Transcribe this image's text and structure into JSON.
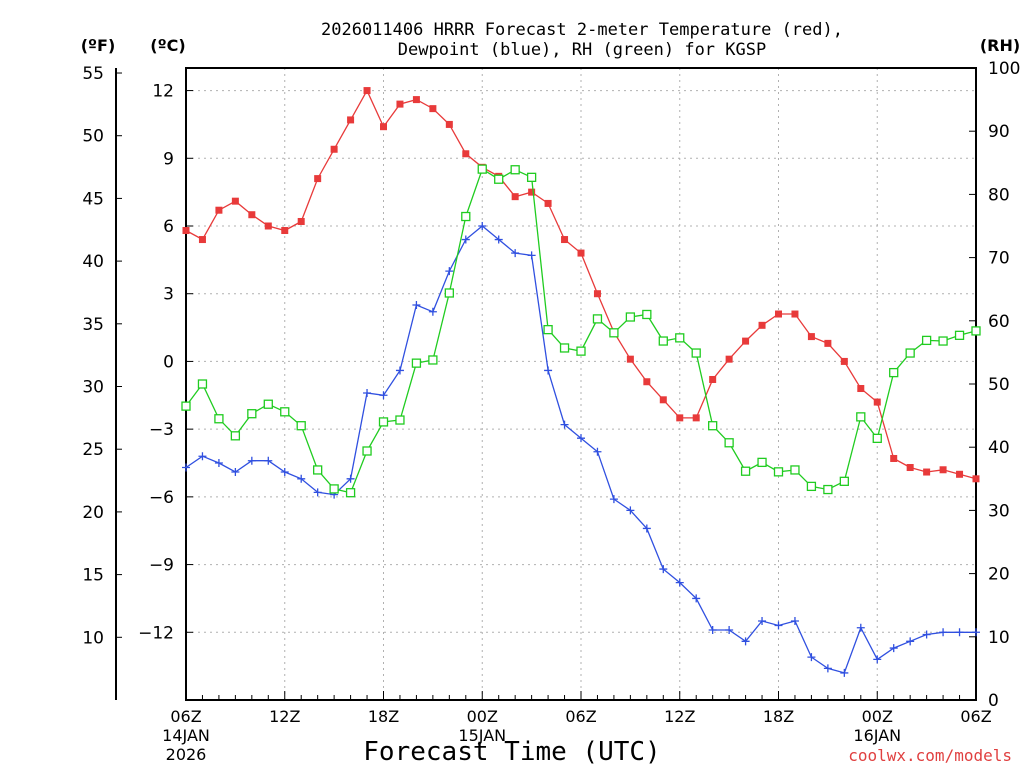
{
  "chart_data": {
    "type": "line",
    "title_line1": "2026011406 HRRR Forecast 2-meter Temperature (red),",
    "title_line2": "Dewpoint (blue), RH (green) for KGSP",
    "unit_labels": {
      "fahrenheit": "(ºF)",
      "celsius": "(ºC)",
      "rh": "(RH)"
    },
    "xlabel": "Forecast Time (UTC)",
    "watermark": "coolwx.com/models",
    "x_range_hours": [
      0,
      48
    ],
    "x_ticks": [
      {
        "hour": 0,
        "label": "06Z",
        "date1": "14JAN",
        "date2": "2026"
      },
      {
        "hour": 6,
        "label": "12Z"
      },
      {
        "hour": 12,
        "label": "18Z"
      },
      {
        "hour": 18,
        "label": "00Z",
        "date1": "15JAN"
      },
      {
        "hour": 24,
        "label": "06Z"
      },
      {
        "hour": 30,
        "label": "12Z"
      },
      {
        "hour": 36,
        "label": "18Z"
      },
      {
        "hour": 42,
        "label": "00Z",
        "date1": "16JAN"
      },
      {
        "hour": 48,
        "label": "06Z"
      }
    ],
    "celsius_axis": {
      "ylim": [
        -15.0,
        13.0
      ],
      "ticks": [
        "12",
        "9",
        "6",
        "3",
        "0",
        "−3",
        "−6",
        "−9",
        "−12"
      ],
      "tick_values": [
        12,
        9,
        6,
        3,
        0,
        -3,
        -6,
        -9,
        -12
      ]
    },
    "fahrenheit_axis": {
      "ticks": [
        "55",
        "50",
        "45",
        "40",
        "35",
        "30",
        "25",
        "20",
        "15",
        "10"
      ],
      "tick_values": [
        55,
        50,
        45,
        40,
        35,
        30,
        25,
        20,
        15,
        10
      ]
    },
    "rh_axis": {
      "ylim": [
        0,
        100
      ],
      "ticks": [
        "100",
        "90",
        "80",
        "70",
        "60",
        "50",
        "40",
        "30",
        "20",
        "10",
        "0"
      ],
      "tick_values": [
        100,
        90,
        80,
        70,
        60,
        50,
        40,
        30,
        20,
        10,
        0
      ]
    },
    "series": [
      {
        "name": "2-meter Temperature",
        "units": "degC",
        "color": "#e83a3a",
        "marker": "filled-square",
        "values": [
          5.8,
          5.4,
          6.7,
          7.1,
          6.5,
          6.0,
          5.8,
          6.2,
          8.1,
          9.4,
          10.7,
          12.0,
          10.4,
          11.4,
          11.6,
          11.2,
          10.5,
          9.2,
          8.6,
          8.2,
          7.3,
          7.5,
          7.0,
          5.4,
          4.8,
          3.0,
          1.3,
          0.1,
          -0.9,
          -1.7,
          -2.5,
          -2.5,
          -0.8,
          0.1,
          0.9,
          1.6,
          2.1,
          2.1,
          1.1,
          0.8,
          0.0,
          -1.2,
          -1.8,
          -4.3,
          -4.7,
          -4.9,
          -4.8,
          -5.0,
          -5.2
        ]
      },
      {
        "name": "Dewpoint",
        "units": "degC",
        "color": "#3050e0",
        "marker": "plus",
        "values": [
          -4.7,
          -4.2,
          -4.5,
          -4.9,
          -4.4,
          -4.4,
          -4.9,
          -5.2,
          -5.8,
          -5.9,
          -5.2,
          -1.4,
          -1.5,
          -0.4,
          2.5,
          2.2,
          4.0,
          5.4,
          6.0,
          5.4,
          4.8,
          4.7,
          -0.4,
          -2.8,
          -3.4,
          -4.0,
          -6.1,
          -6.6,
          -7.4,
          -9.2,
          -9.8,
          -10.5,
          -11.9,
          -11.9,
          -12.4,
          -11.5,
          -11.7,
          -11.5,
          -13.1,
          -13.6,
          -13.8,
          -11.8,
          -13.2,
          -12.7,
          -12.4,
          -12.1,
          -12.0,
          -12.0,
          -12.0
        ]
      },
      {
        "name": "RH",
        "units": "percent",
        "color": "#20cc20",
        "marker": "open-square",
        "values": [
          46.5,
          50.0,
          44.5,
          41.8,
          45.3,
          46.8,
          45.6,
          43.4,
          36.4,
          33.4,
          32.8,
          39.4,
          44.0,
          44.3,
          53.3,
          53.8,
          64.4,
          76.5,
          84.0,
          82.4,
          83.9,
          82.7,
          58.6,
          55.7,
          55.2,
          60.3,
          58.1,
          60.6,
          61.0,
          56.8,
          57.3,
          54.9,
          43.4,
          40.7,
          36.2,
          37.6,
          36.1,
          36.4,
          33.8,
          33.3,
          34.6,
          44.8,
          41.4,
          51.8,
          54.9,
          56.9,
          56.8,
          57.7,
          58.4
        ]
      }
    ]
  }
}
